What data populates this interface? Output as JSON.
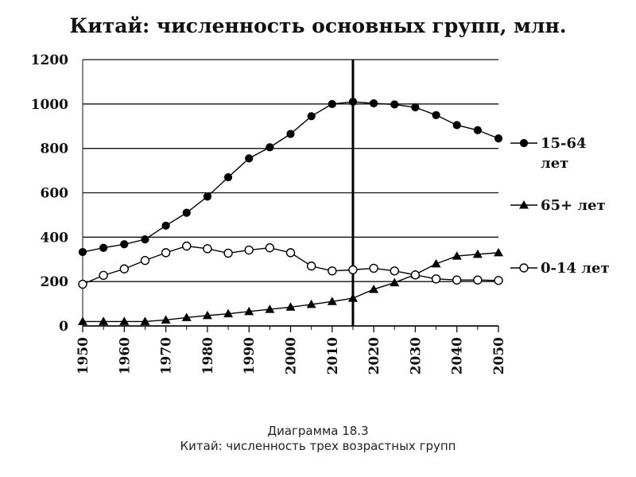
{
  "chart_data": {
    "type": "line",
    "title": "Китай: численность основных групп, млн.",
    "xlabel": "",
    "ylabel": "",
    "ylim": [
      0,
      1200
    ],
    "yticks": [
      "0",
      "200",
      "400",
      "600",
      "800",
      "1000",
      "1200"
    ],
    "xlim": [
      1950,
      2050
    ],
    "xticks": [
      "1950",
      "1960",
      "1970",
      "1980",
      "1990",
      "2000",
      "2010",
      "2020",
      "2030",
      "2040",
      "2050"
    ],
    "grid": true,
    "legend_position": "right",
    "vertical_marker_x": 2015,
    "x": [
      1950,
      1955,
      1960,
      1965,
      1970,
      1975,
      1980,
      1985,
      1990,
      1995,
      2000,
      2005,
      2010,
      2015,
      2020,
      2025,
      2030,
      2035,
      2040,
      2045,
      2050
    ],
    "series": [
      {
        "name": "15-64 лет",
        "marker": "filled-circle",
        "values": [
          333,
          352,
          368,
          390,
          452,
          510,
          583,
          670,
          755,
          805,
          865,
          945,
          1000,
          1010,
          1003,
          998,
          985,
          950,
          905,
          882,
          845
        ]
      },
      {
        "name": "65+ лет",
        "marker": "filled-triangle",
        "values": [
          20,
          20,
          20,
          20,
          27,
          38,
          47,
          55,
          65,
          75,
          85,
          97,
          110,
          125,
          165,
          195,
          232,
          280,
          315,
          323,
          330
        ]
      },
      {
        "name": "0-14 лет",
        "marker": "open-circle",
        "values": [
          188,
          228,
          257,
          295,
          330,
          360,
          348,
          328,
          342,
          352,
          330,
          270,
          248,
          253,
          260,
          248,
          230,
          212,
          207,
          207,
          205
        ]
      }
    ]
  },
  "caption": {
    "number": "Диаграмма 18.3",
    "text": "Китай: численность трех возрастных групп"
  }
}
